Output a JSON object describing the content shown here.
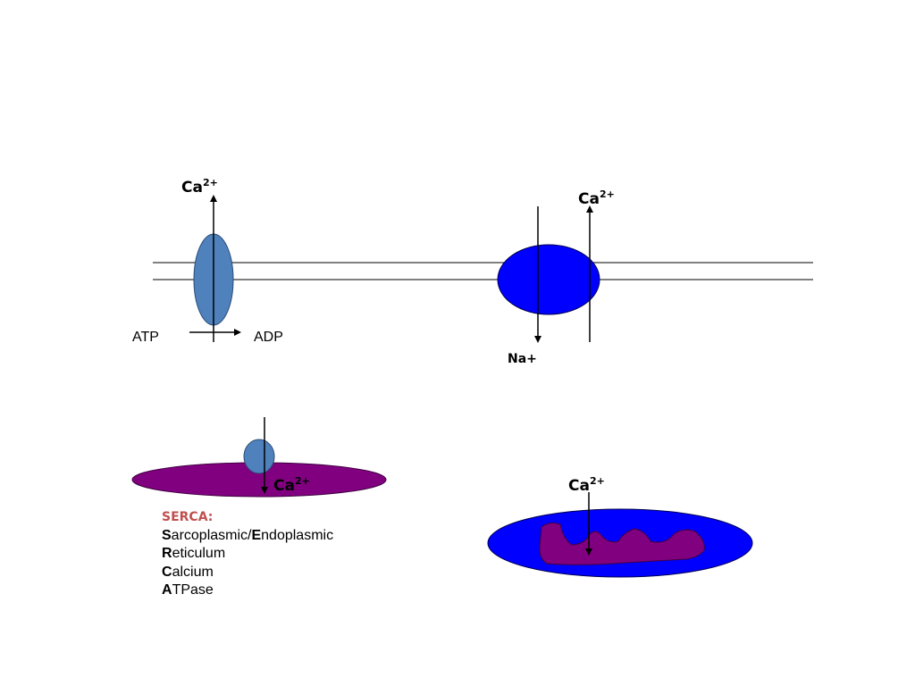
{
  "labels": {
    "ca_ion": "Ca",
    "ca_charge": "2+",
    "atp": "ATP",
    "adp": "ADP",
    "na": "Na+"
  },
  "serca": {
    "title": "SERCA:",
    "lines": [
      {
        "initial": "S",
        "rest": "arcoplasmic/",
        "initial2": "E",
        "rest2": "ndoplasmic"
      },
      {
        "initial": "R",
        "rest": "eticulum"
      },
      {
        "initial": "C",
        "rest": "alcium"
      },
      {
        "initial": "A",
        "rest": "TPase"
      }
    ]
  },
  "colors": {
    "pump": "#4f81bd",
    "exchanger": "#0000ff",
    "er": "#800080",
    "mitochondrion_outer": "#0000ff",
    "mitochondrion_inner": "#800080",
    "serca_title": "#c0504d"
  }
}
